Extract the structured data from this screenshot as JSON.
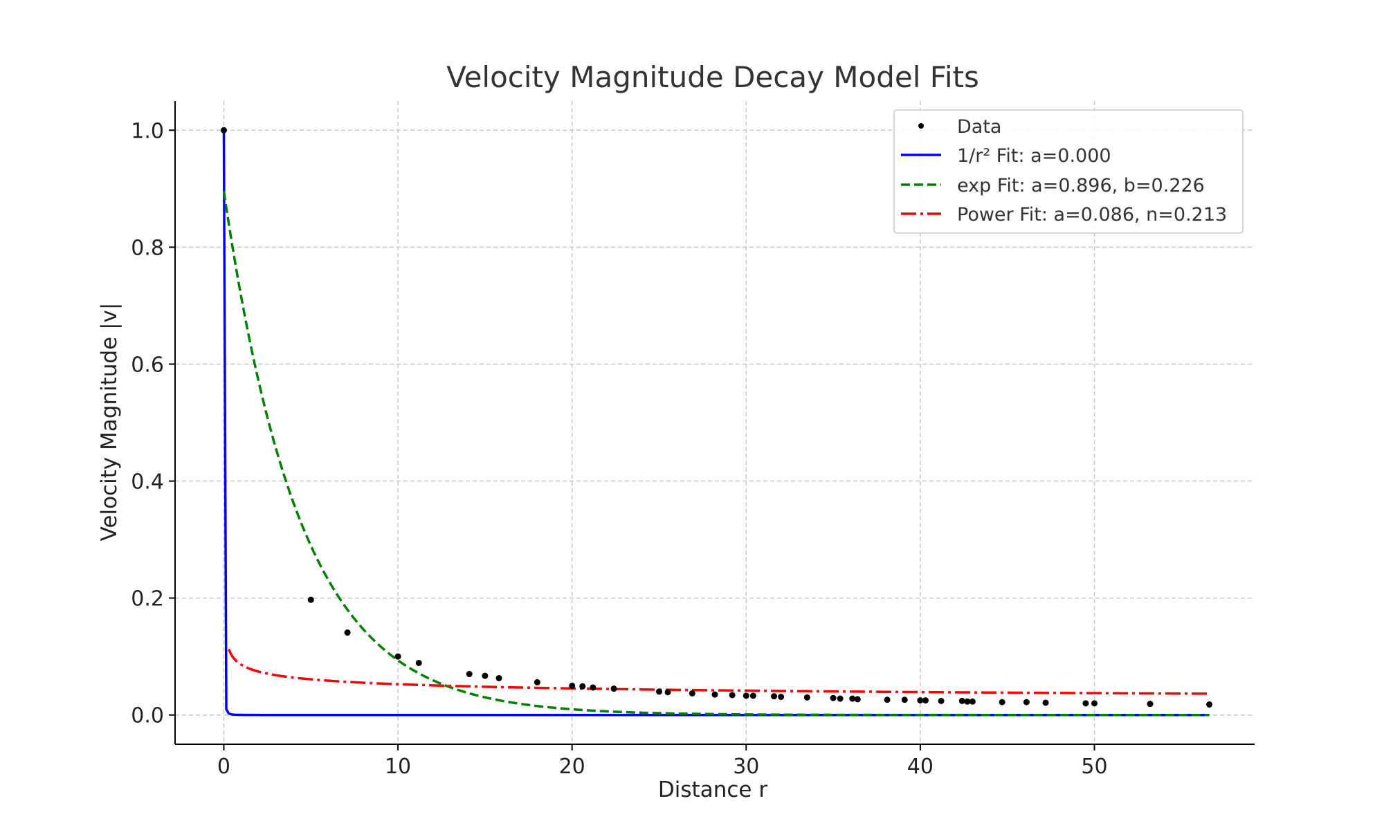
{
  "chart_data": {
    "type": "line",
    "title": "Velocity Magnitude Decay Model Fits",
    "xlabel": "Distance r",
    "ylabel": "Velocity Magnitude |v|",
    "xlim": [
      -2.8,
      59.2
    ],
    "ylim": [
      -0.05,
      1.05
    ],
    "xticks": [
      0,
      10,
      20,
      30,
      40,
      50
    ],
    "yticks": [
      0.0,
      0.2,
      0.4,
      0.6,
      0.8,
      1.0
    ],
    "xtick_labels": [
      "0",
      "10",
      "20",
      "30",
      "40",
      "50"
    ],
    "ytick_labels": [
      "0.0",
      "0.2",
      "0.4",
      "0.6",
      "0.8",
      "1.0"
    ],
    "grid": true,
    "legend_position": "top-right",
    "data_points": {
      "name": "Data",
      "color": "#000000",
      "x": [
        0.0,
        5.0,
        7.1,
        10.0,
        11.2,
        14.1,
        15.0,
        15.8,
        18.0,
        20.0,
        20.6,
        21.2,
        22.4,
        25.0,
        25.5,
        26.9,
        28.2,
        29.2,
        30.0,
        30.4,
        31.6,
        32.0,
        33.5,
        35.0,
        35.4,
        36.1,
        36.4,
        38.1,
        39.1,
        40.0,
        40.3,
        41.2,
        42.4,
        42.7,
        43.0,
        44.7,
        46.1,
        47.2,
        49.5,
        50.0,
        53.2,
        56.6
      ],
      "y": [
        1.0,
        0.197,
        0.141,
        0.1,
        0.089,
        0.07,
        0.067,
        0.063,
        0.056,
        0.05,
        0.049,
        0.047,
        0.045,
        0.04,
        0.039,
        0.037,
        0.035,
        0.034,
        0.033,
        0.033,
        0.032,
        0.031,
        0.03,
        0.029,
        0.028,
        0.028,
        0.027,
        0.026,
        0.026,
        0.025,
        0.025,
        0.024,
        0.024,
        0.023,
        0.023,
        0.022,
        0.022,
        0.021,
        0.02,
        0.02,
        0.019,
        0.018
      ]
    },
    "series": [
      {
        "name": "1/r² Fit: a=0.000",
        "model": "a/r^2",
        "color": "#0000ff",
        "dash": "solid"
      },
      {
        "name": "exp Fit: a=0.896, b=0.226",
        "model": "a*exp(-b*r)",
        "color": "#008000",
        "dash": "dashed"
      },
      {
        "name": "Power Fit: a=0.086, n=0.213",
        "model": "a*r^(-n)",
        "color": "#ff0000",
        "dash": "dashdot"
      }
    ],
    "legend": {
      "entries": [
        "Data",
        "1/r² Fit: a=0.000",
        "exp Fit: a=0.896, b=0.226",
        "Power Fit: a=0.086, n=0.213"
      ]
    }
  }
}
